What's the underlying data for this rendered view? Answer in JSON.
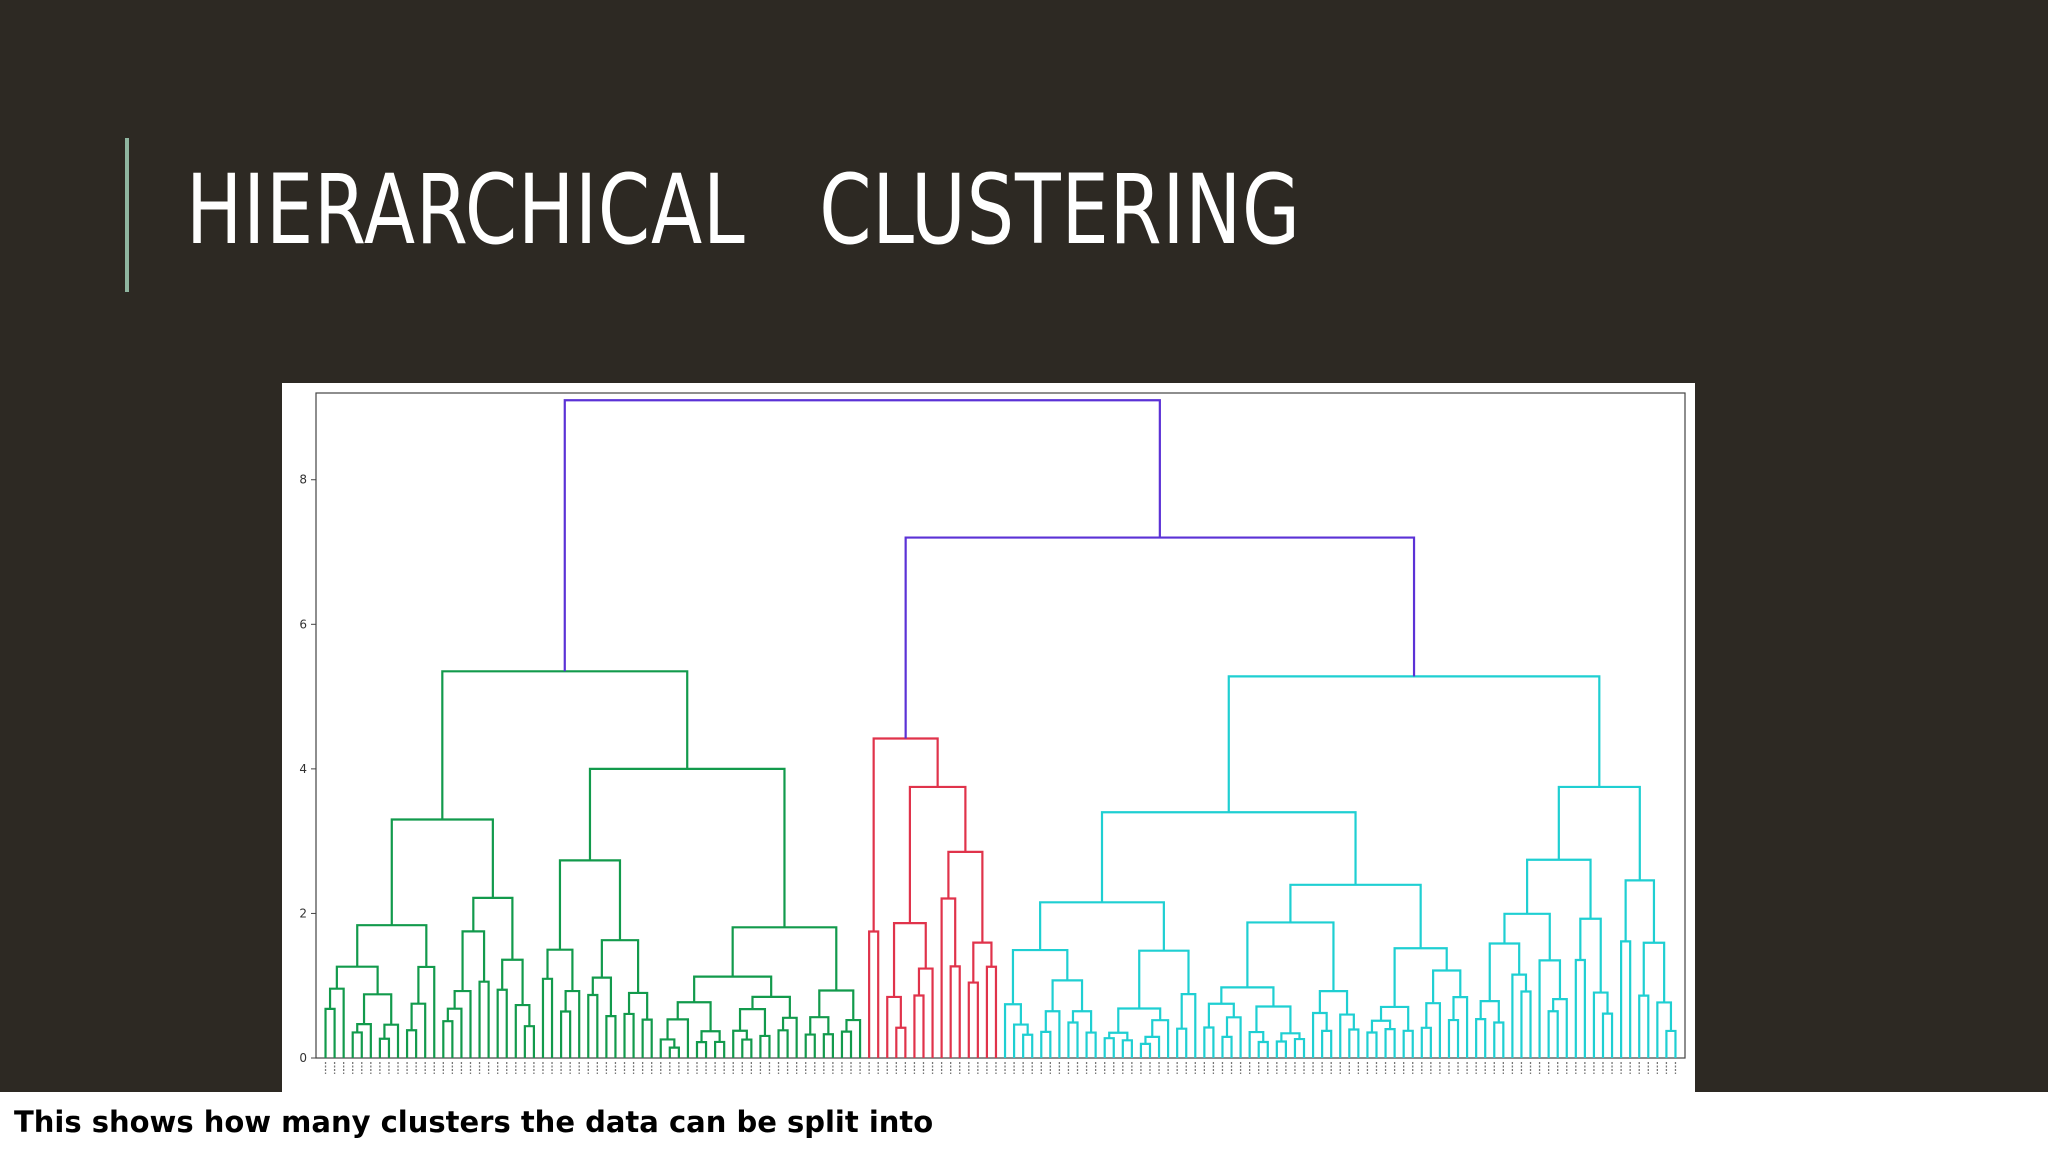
{
  "slide": {
    "title": "HIERARCHICAL   CLUSTERING",
    "caption": "This shows how many clusters the data can be split into"
  },
  "colors": {
    "background": "#2d2923",
    "accent": "#8fb5a0",
    "root_links": "#5b32d6",
    "cluster_green": "#129a4c",
    "cluster_red": "#e0334b",
    "cluster_cyan": "#1fcfd2"
  },
  "chart_data": {
    "type": "dendrogram",
    "y_ticks": [
      "0",
      "2",
      "4",
      "6",
      "8"
    ],
    "ylim": [
      0,
      9.2
    ],
    "leaf_count": 150,
    "leaf_ranges": {
      "green": [
        0,
        60
      ],
      "red": [
        60,
        75
      ],
      "cyan": [
        75,
        150
      ]
    },
    "main_links": [
      {
        "name": "root",
        "height": 9.1,
        "left": "green-cluster",
        "right": "red-cyan-merge",
        "color": "#5b32d6"
      },
      {
        "name": "red-cyan-merge",
        "height": 7.2,
        "left": "red-cluster",
        "right": "cyan-cluster",
        "color": "#5b32d6"
      },
      {
        "name": "green-cluster",
        "height": 5.35,
        "color": "#129a4c"
      },
      {
        "name": "red-cluster",
        "height": 4.42,
        "color": "#e0334b"
      },
      {
        "name": "cyan-cluster",
        "height": 5.28,
        "color": "#1fcfd2"
      }
    ]
  }
}
